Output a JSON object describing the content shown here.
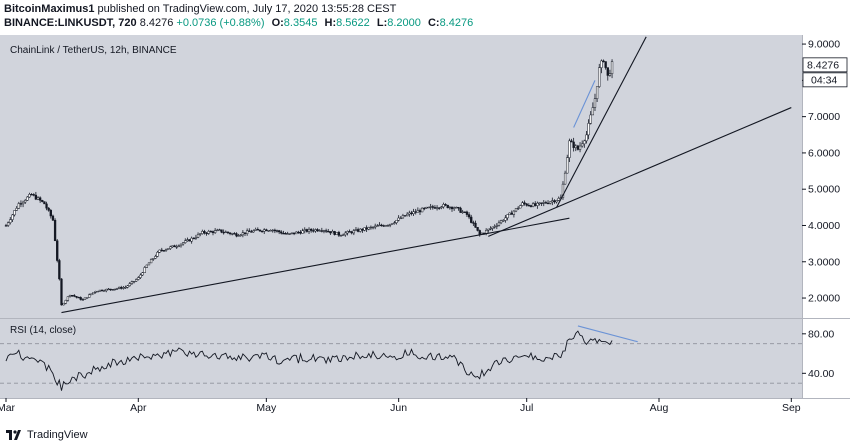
{
  "header": {
    "publisher_name": "BitcoinMaximus1",
    "publisher_text": " published on TradingView.com, July 17, 2020 13:55:28 CEST",
    "symbol": "BINANCE:LINKUSDT, 720",
    "last": "8.4276",
    "change": "+0.0736 (+0.88%)",
    "o_label": "O:",
    "o_value": "8.3545",
    "h_label": "H:",
    "h_value": "8.5622",
    "l_label": "L:",
    "l_value": "8.2000",
    "c_label": "C:",
    "c_value": "8.4276"
  },
  "chart_data": {
    "type": "candlestick",
    "title": "ChainLink / TetherUS, 12h, BINANCE",
    "price_axis": {
      "ylim": [
        1.45,
        9.25
      ],
      "ticks": [
        2,
        3,
        4,
        5,
        6,
        7,
        8,
        9
      ],
      "tick_labels": [
        "2.0000",
        "3.0000",
        "4.0000",
        "5.0000",
        "6.0000",
        "7.0000",
        "8.0000",
        "9.0000"
      ],
      "last_price_label": "8.4276",
      "countdown_label": "04:34",
      "last_price": 8.4276
    },
    "time_axis": {
      "labels": [
        "Mar",
        "Apr",
        "May",
        "Jun",
        "Jul",
        "Aug",
        "Sep"
      ],
      "label_day": [
        0,
        31,
        61,
        92,
        122,
        153,
        184
      ]
    },
    "price_keypoints": [
      [
        0,
        4.0
      ],
      [
        3,
        4.6
      ],
      [
        6,
        4.85
      ],
      [
        9,
        4.6
      ],
      [
        11,
        4.15
      ],
      [
        12.5,
        2.5
      ],
      [
        13,
        1.8
      ],
      [
        15,
        2.1
      ],
      [
        18,
        1.95
      ],
      [
        21,
        2.2
      ],
      [
        25,
        2.25
      ],
      [
        28,
        2.3
      ],
      [
        31,
        2.55
      ],
      [
        33,
        2.9
      ],
      [
        36,
        3.3
      ],
      [
        40,
        3.45
      ],
      [
        43,
        3.6
      ],
      [
        46,
        3.8
      ],
      [
        50,
        3.85
      ],
      [
        54,
        3.75
      ],
      [
        58,
        3.85
      ],
      [
        62,
        3.9
      ],
      [
        66,
        3.75
      ],
      [
        70,
        3.85
      ],
      [
        74,
        3.9
      ],
      [
        78,
        3.75
      ],
      [
        82,
        3.85
      ],
      [
        86,
        3.95
      ],
      [
        90,
        4.05
      ],
      [
        94,
        4.3
      ],
      [
        98,
        4.45
      ],
      [
        102,
        4.55
      ],
      [
        105,
        4.5
      ],
      [
        108,
        4.3
      ],
      [
        111,
        3.75
      ],
      [
        114,
        3.95
      ],
      [
        118,
        4.3
      ],
      [
        121,
        4.6
      ],
      [
        124,
        4.55
      ],
      [
        127,
        4.65
      ],
      [
        130,
        4.75
      ],
      [
        131,
        5.5
      ],
      [
        132,
        6.3
      ],
      [
        134,
        6.1
      ],
      [
        136,
        6.5
      ],
      [
        138,
        7.5
      ],
      [
        139,
        8.3
      ],
      [
        140,
        8.6
      ],
      [
        141,
        8.1
      ],
      [
        142,
        8.43
      ]
    ],
    "trendlines": [
      {
        "from": [
          13,
          1.6
        ],
        "to": [
          132,
          4.2
        ],
        "color": "#131722"
      },
      {
        "from": [
          113,
          3.7
        ],
        "to": [
          184,
          7.25
        ],
        "color": "#131722"
      },
      {
        "from": [
          129,
          4.5
        ],
        "to": [
          150,
          9.2
        ],
        "color": "#131722"
      },
      {
        "from": [
          133,
          6.7
        ],
        "to": [
          138,
          8.0
        ],
        "color": "#6b93d6"
      }
    ],
    "rsi": {
      "label": "RSI (14, close)",
      "ylim": [
        15,
        95
      ],
      "ticks": [
        40,
        80
      ],
      "tick_labels": [
        "40.00",
        "80.00"
      ],
      "bands": [
        30,
        70
      ],
      "keypoints": [
        [
          0,
          55
        ],
        [
          3,
          60
        ],
        [
          6,
          52
        ],
        [
          9,
          48
        ],
        [
          11,
          40
        ],
        [
          13,
          25
        ],
        [
          15,
          35
        ],
        [
          18,
          38
        ],
        [
          21,
          45
        ],
        [
          25,
          50
        ],
        [
          30,
          55
        ],
        [
          35,
          58
        ],
        [
          40,
          62
        ],
        [
          45,
          60
        ],
        [
          50,
          57
        ],
        [
          55,
          55
        ],
        [
          60,
          58
        ],
        [
          65,
          52
        ],
        [
          70,
          56
        ],
        [
          75,
          53
        ],
        [
          80,
          57
        ],
        [
          85,
          60
        ],
        [
          90,
          57
        ],
        [
          95,
          60
        ],
        [
          100,
          57
        ],
        [
          105,
          54
        ],
        [
          110,
          35
        ],
        [
          114,
          48
        ],
        [
          118,
          55
        ],
        [
          122,
          60
        ],
        [
          126,
          53
        ],
        [
          130,
          58
        ],
        [
          132,
          75
        ],
        [
          134,
          80
        ],
        [
          136,
          70
        ],
        [
          138,
          77
        ],
        [
          140,
          70
        ],
        [
          142,
          73
        ]
      ],
      "divergence": {
        "from": [
          134,
          88
        ],
        "to": [
          148,
          72
        ],
        "color": "#6b93d6"
      }
    }
  },
  "footer": {
    "brand": "TradingView"
  },
  "colors": {
    "panel_bg": "#d1d4dc",
    "candle": "#131722",
    "axis_text": "#131722",
    "band": "#8f929b"
  }
}
